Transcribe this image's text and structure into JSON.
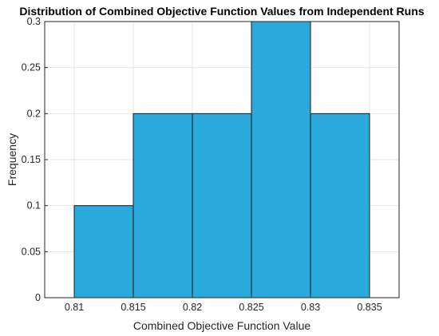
{
  "chart_data": {
    "type": "bar",
    "title": "Distribution of Combined Objective Function Values from Independent Runs",
    "xlabel": "Combined Objective Function Value",
    "ylabel": "Frequency",
    "bins": [
      {
        "start": 0.81,
        "end": 0.815,
        "value": 0.1
      },
      {
        "start": 0.815,
        "end": 0.82,
        "value": 0.2
      },
      {
        "start": 0.82,
        "end": 0.825,
        "value": 0.2
      },
      {
        "start": 0.825,
        "end": 0.83,
        "value": 0.3
      },
      {
        "start": 0.83,
        "end": 0.835,
        "value": 0.2
      }
    ],
    "xlim": [
      0.8075,
      0.8375
    ],
    "ylim": [
      0,
      0.3
    ],
    "xticks": [
      "0.81",
      "0.815",
      "0.82",
      "0.825",
      "0.83",
      "0.835"
    ],
    "xtick_values": [
      0.81,
      0.815,
      0.82,
      0.825,
      0.83,
      0.835
    ],
    "yticks": [
      "0",
      "0.05",
      "0.1",
      "0.15",
      "0.2",
      "0.25",
      "0.3"
    ],
    "ytick_values": [
      0,
      0.05,
      0.1,
      0.15,
      0.2,
      0.25,
      0.3
    ],
    "grid": true,
    "bar_color": "#2aa9dc",
    "bar_edge_color": "#1a1a1a"
  }
}
